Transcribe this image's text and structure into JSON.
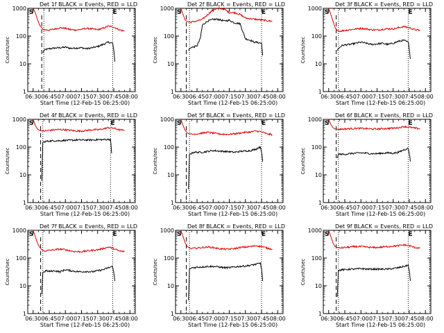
{
  "figure": {
    "ylabel": "Counts/sec",
    "xlabel": "Start Time (12-Feb-15 06:25:00)",
    "x_tick_labels": [
      "06:30",
      "06:45",
      "07:00",
      "07:15",
      "07:30",
      "07:45",
      "08:00"
    ],
    "y_tick_labels": [
      "1",
      "10",
      "100",
      "1000"
    ],
    "marker_S": "S",
    "marker_E": "E",
    "colors": {
      "events": "#000000",
      "lld": "#dd0000",
      "frame": "#000000",
      "background": "#ffffff"
    }
  },
  "chart_data": [
    {
      "type": "line",
      "title": "Det 1f BLACK = Events, RED = LLD",
      "xlabel": "Start Time (12-Feb-15 06:25:00)",
      "ylabel": "Counts/sec",
      "ylim": [
        1,
        1000
      ],
      "yscale": "log",
      "x_range_min": [
        -2,
        85
      ],
      "series": [
        {
          "name": "Events",
          "color": "#000000",
          "x": [
            9,
            10,
            12,
            15,
            20,
            25,
            30,
            35,
            40,
            45,
            50,
            55,
            60,
            65,
            70,
            74,
            75,
            76
          ],
          "y": [
            25,
            30,
            33,
            35,
            37,
            38,
            40,
            36,
            37,
            38,
            35,
            38,
            42,
            50,
            60,
            55,
            30,
            12
          ]
        },
        {
          "name": "LLD",
          "color": "#dd0000",
          "x": [
            0,
            2,
            4,
            6,
            8,
            10,
            15,
            20,
            25,
            30,
            35,
            40,
            45,
            50,
            55,
            60,
            65,
            70,
            75,
            80,
            85
          ],
          "y": [
            1000,
            700,
            400,
            250,
            200,
            170,
            165,
            180,
            200,
            190,
            170,
            165,
            175,
            190,
            180,
            170,
            190,
            230,
            210,
            170,
            150
          ]
        }
      ],
      "dashed_vline": 8,
      "dotted_vlines": [
        10,
        74,
        80
      ]
    },
    {
      "type": "line",
      "title": "Det 2f BLACK = Events, RED = LLD",
      "xlabel": "Start Time (12-Feb-15 06:25:00)",
      "ylabel": "Counts/sec",
      "ylim": [
        1,
        1000
      ],
      "yscale": "log",
      "x_range_min": [
        -2,
        85
      ],
      "series": [
        {
          "name": "Events",
          "color": "#000000",
          "x": [
            7,
            8,
            10,
            12,
            15,
            18,
            20,
            25,
            30,
            35,
            40,
            45,
            50,
            55,
            60,
            65,
            68,
            70,
            75,
            76
          ],
          "y": [
            30,
            35,
            40,
            40,
            45,
            80,
            250,
            350,
            400,
            400,
            350,
            370,
            300,
            280,
            80,
            70,
            60,
            60,
            55,
            20
          ]
        },
        {
          "name": "LLD",
          "color": "#dd0000",
          "x": [
            0,
            2,
            4,
            6,
            8,
            10,
            15,
            20,
            25,
            30,
            35,
            40,
            45,
            50,
            55,
            60,
            65,
            70,
            75,
            80,
            85
          ],
          "y": [
            1000,
            600,
            380,
            330,
            320,
            320,
            350,
            400,
            600,
            900,
            1000,
            950,
            700,
            700,
            600,
            450,
            420,
            400,
            380,
            360,
            340
          ]
        }
      ],
      "dashed_vline": 5,
      "dotted_vlines": [
        8,
        75,
        80
      ]
    },
    {
      "type": "line",
      "title": "Det 3f BLACK = Events, RED = LLD",
      "xlabel": "Start Time (12-Feb-15 06:25:00)",
      "ylabel": "Counts/sec",
      "ylim": [
        1,
        1000
      ],
      "yscale": "log",
      "x_range_min": [
        -2,
        85
      ],
      "series": [
        {
          "name": "Events",
          "color": "#000000",
          "x": [
            8,
            9,
            12,
            15,
            20,
            25,
            30,
            35,
            40,
            45,
            50,
            55,
            60,
            65,
            70,
            74,
            75,
            76
          ],
          "y": [
            30,
            35,
            45,
            48,
            50,
            55,
            60,
            55,
            50,
            52,
            55,
            50,
            55,
            65,
            70,
            60,
            35,
            15
          ]
        },
        {
          "name": "LLD",
          "color": "#dd0000",
          "x": [
            0,
            2,
            4,
            6,
            8,
            10,
            15,
            20,
            25,
            30,
            35,
            40,
            45,
            50,
            55,
            60,
            65,
            70,
            75,
            80,
            85
          ],
          "y": [
            1000,
            600,
            350,
            200,
            160,
            150,
            160,
            170,
            180,
            190,
            180,
            170,
            165,
            175,
            185,
            180,
            200,
            220,
            200,
            170,
            160
          ]
        }
      ],
      "dashed_vline": 7,
      "dotted_vlines": [
        9,
        74,
        80
      ]
    },
    {
      "type": "line",
      "title": "Det 4f BLACK = Events, RED = LLD",
      "xlabel": "Start Time (12-Feb-15 06:25:00)",
      "ylabel": "Counts/sec",
      "ylim": [
        1,
        1000
      ],
      "yscale": "log",
      "x_range_min": [
        -2,
        85
      ],
      "series": [
        {
          "name": "Events",
          "color": "#000000",
          "x": [
            8,
            9,
            12,
            15,
            20,
            25,
            30,
            35,
            40,
            45,
            50,
            55,
            60,
            65,
            70,
            72,
            73
          ],
          "y": [
            6,
            150,
            160,
            165,
            170,
            170,
            175,
            175,
            180,
            180,
            180,
            180,
            185,
            185,
            190,
            185,
            60
          ]
        },
        {
          "name": "LLD",
          "color": "#dd0000",
          "x": [
            0,
            2,
            4,
            6,
            8,
            10,
            15,
            20,
            25,
            30,
            35,
            40,
            45,
            50,
            55,
            60,
            65,
            70,
            75,
            80,
            85
          ],
          "y": [
            1000,
            600,
            450,
            400,
            380,
            380,
            400,
            420,
            430,
            420,
            400,
            380,
            380,
            400,
            420,
            420,
            450,
            500,
            480,
            420,
            400
          ]
        }
      ],
      "dashed_vline": 7,
      "dotted_vlines": [
        9,
        72,
        80
      ]
    },
    {
      "type": "line",
      "title": "Det 5f BLACK = Events, RED = LLD",
      "xlabel": "Start Time (12-Feb-15 06:25:00)",
      "ylabel": "Counts/sec",
      "ylim": [
        1,
        1000
      ],
      "yscale": "log",
      "x_range_min": [
        -2,
        85
      ],
      "series": [
        {
          "name": "Events",
          "color": "#000000",
          "x": [
            7,
            8,
            10,
            12,
            15,
            20,
            25,
            30,
            35,
            40,
            45,
            50,
            55,
            60,
            65,
            70,
            72,
            74,
            75,
            76
          ],
          "y": [
            3,
            55,
            60,
            65,
            65,
            65,
            70,
            75,
            72,
            70,
            68,
            65,
            70,
            72,
            75,
            85,
            95,
            100,
            70,
            30
          ]
        },
        {
          "name": "LLD",
          "color": "#dd0000",
          "x": [
            0,
            2,
            4,
            6,
            8,
            10,
            15,
            20,
            25,
            30,
            35,
            40,
            45,
            50,
            55,
            60,
            65,
            70,
            75,
            80,
            85
          ],
          "y": [
            1000,
            600,
            400,
            320,
            300,
            290,
            300,
            320,
            340,
            320,
            300,
            290,
            290,
            300,
            320,
            340,
            350,
            380,
            350,
            300,
            280
          ]
        }
      ],
      "dashed_vline": 5,
      "dotted_vlines": [
        8,
        75,
        80
      ]
    },
    {
      "type": "line",
      "title": "Det 6f BLACK = Events, RED = LLD",
      "xlabel": "Start Time (12-Feb-15 06:25:00)",
      "ylabel": "Counts/sec",
      "ylim": [
        1,
        1000
      ],
      "yscale": "log",
      "x_range_min": [
        -2,
        85
      ],
      "series": [
        {
          "name": "Events",
          "color": "#000000",
          "x": [
            8,
            9,
            12,
            15,
            20,
            25,
            30,
            35,
            40,
            45,
            50,
            55,
            60,
            65,
            70,
            74,
            75,
            76
          ],
          "y": [
            40,
            55,
            55,
            55,
            58,
            60,
            62,
            60,
            58,
            58,
            60,
            62,
            60,
            65,
            80,
            90,
            60,
            30
          ]
        },
        {
          "name": "LLD",
          "color": "#dd0000",
          "x": [
            0,
            2,
            4,
            6,
            8,
            10,
            15,
            20,
            25,
            30,
            35,
            40,
            45,
            50,
            55,
            60,
            65,
            70,
            75,
            80,
            85
          ],
          "y": [
            1000,
            650,
            500,
            450,
            440,
            440,
            450,
            460,
            470,
            470,
            460,
            450,
            450,
            460,
            470,
            480,
            500,
            550,
            520,
            480,
            460
          ]
        }
      ],
      "dashed_vline": 7,
      "dotted_vlines": [
        9,
        74,
        80
      ]
    },
    {
      "type": "line",
      "title": "Det 7f BLACK = Events, RED = LLD",
      "xlabel": "Start Time (12-Feb-15 06:25:00)",
      "ylabel": "Counts/sec",
      "ylim": [
        1,
        1000
      ],
      "yscale": "log",
      "x_range_min": [
        -2,
        85
      ],
      "series": [
        {
          "name": "Events",
          "color": "#000000",
          "x": [
            8,
            9,
            12,
            15,
            20,
            25,
            30,
            35,
            40,
            45,
            50,
            55,
            60,
            65,
            70,
            74,
            75,
            76
          ],
          "y": [
            5,
            30,
            35,
            33,
            35,
            32,
            38,
            35,
            33,
            32,
            33,
            32,
            35,
            38,
            45,
            50,
            30,
            15
          ]
        },
        {
          "name": "LLD",
          "color": "#dd0000",
          "x": [
            0,
            2,
            4,
            6,
            8,
            10,
            15,
            20,
            25,
            30,
            35,
            40,
            45,
            50,
            55,
            60,
            65,
            70,
            75,
            80,
            85
          ],
          "y": [
            1000,
            600,
            350,
            250,
            200,
            180,
            190,
            200,
            210,
            200,
            180,
            170,
            170,
            180,
            190,
            200,
            220,
            250,
            220,
            180,
            170
          ]
        }
      ],
      "dashed_vline": 7,
      "dotted_vlines": [
        9,
        74,
        80
      ]
    },
    {
      "type": "line",
      "title": "Det 8f BLACK = Events, RED = LLD",
      "xlabel": "Start Time (12-Feb-15 06:25:00)",
      "ylabel": "Counts/sec",
      "ylim": [
        1,
        1000
      ],
      "yscale": "log",
      "x_range_min": [
        -2,
        85
      ],
      "series": [
        {
          "name": "Events",
          "color": "#000000",
          "x": [
            7,
            8,
            10,
            12,
            15,
            20,
            25,
            30,
            35,
            40,
            45,
            50,
            55,
            60,
            65,
            70,
            74,
            75,
            76
          ],
          "y": [
            3,
            40,
            45,
            45,
            47,
            48,
            50,
            50,
            48,
            45,
            45,
            48,
            50,
            52,
            55,
            60,
            65,
            40,
            15
          ]
        },
        {
          "name": "LLD",
          "color": "#dd0000",
          "x": [
            0,
            2,
            4,
            6,
            8,
            10,
            15,
            20,
            25,
            30,
            35,
            40,
            45,
            50,
            55,
            60,
            65,
            70,
            75,
            80,
            85
          ],
          "y": [
            1000,
            600,
            350,
            260,
            230,
            220,
            230,
            240,
            250,
            240,
            220,
            210,
            210,
            220,
            240,
            250,
            260,
            280,
            260,
            230,
            210
          ]
        }
      ],
      "dashed_vline": 5,
      "dotted_vlines": [
        8,
        75,
        80
      ]
    },
    {
      "type": "line",
      "title": "Det 9f BLACK = Events, RED = LLD",
      "xlabel": "Start Time (12-Feb-15 06:25:00)",
      "ylabel": "Counts/sec",
      "ylim": [
        1,
        1000
      ],
      "yscale": "log",
      "x_range_min": [
        -2,
        85
      ],
      "series": [
        {
          "name": "Events",
          "color": "#000000",
          "x": [
            8,
            9,
            12,
            15,
            20,
            25,
            30,
            35,
            40,
            45,
            50,
            55,
            60,
            65,
            70,
            74,
            75,
            76
          ],
          "y": [
            4,
            35,
            38,
            38,
            40,
            40,
            42,
            40,
            40,
            40,
            40,
            40,
            42,
            45,
            50,
            55,
            35,
            15
          ]
        },
        {
          "name": "LLD",
          "color": "#dd0000",
          "x": [
            0,
            2,
            4,
            6,
            8,
            10,
            15,
            20,
            25,
            30,
            35,
            40,
            45,
            50,
            55,
            60,
            65,
            70,
            75,
            80,
            85
          ],
          "y": [
            1000,
            600,
            350,
            260,
            240,
            230,
            240,
            250,
            260,
            260,
            250,
            240,
            240,
            250,
            260,
            270,
            280,
            300,
            280,
            240,
            230
          ]
        }
      ],
      "dashed_vline": 7,
      "dotted_vlines": [
        9,
        74,
        80
      ]
    }
  ]
}
